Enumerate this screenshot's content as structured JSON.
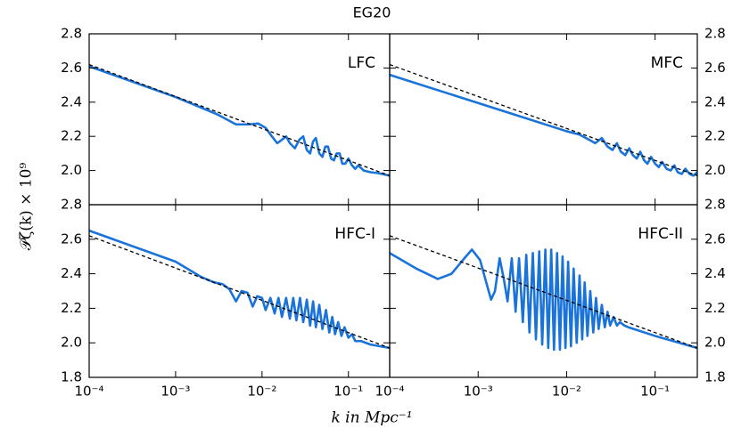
{
  "figure": {
    "title": "EG20",
    "xlabel": "k in Mpc⁻¹",
    "ylabel": "𝒫ζ(k) × 10⁹"
  },
  "chart_data": [
    {
      "type": "line",
      "title": "LFC",
      "xlog": true,
      "xlim": [
        0.0001,
        0.3
      ],
      "ylim": [
        1.8,
        2.8
      ],
      "yaxis": "left",
      "xticks": [
        0.0001,
        0.001,
        0.01,
        0.1
      ],
      "yticks": [
        {
          "value": 2.0,
          "label": "2.0"
        },
        {
          "value": 2.2,
          "label": "2.2"
        },
        {
          "value": 2.4,
          "label": "2.4"
        },
        {
          "value": 2.6,
          "label": "2.6"
        },
        {
          "value": 2.8,
          "label": "2.8"
        }
      ],
      "series": [
        {
          "color": "#1a73d9",
          "style": "solid",
          "x": [
            0.0001,
            0.001,
            0.003,
            0.005,
            0.007,
            0.009,
            0.011,
            0.013,
            0.015,
            0.017,
            0.019,
            0.021,
            0.024,
            0.027,
            0.03,
            0.033,
            0.036,
            0.039,
            0.042,
            0.046,
            0.05,
            0.054,
            0.058,
            0.063,
            0.068,
            0.073,
            0.079,
            0.085,
            0.092,
            0.1,
            0.11,
            0.12,
            0.13,
            0.15,
            0.18,
            0.22,
            0.3
          ],
          "values": [
            2.61,
            2.43,
            2.33,
            2.27,
            2.27,
            2.275,
            2.25,
            2.2,
            2.16,
            2.18,
            2.2,
            2.16,
            2.13,
            2.18,
            2.2,
            2.12,
            2.1,
            2.17,
            2.19,
            2.1,
            2.08,
            2.14,
            2.14,
            2.07,
            2.06,
            2.1,
            2.1,
            2.04,
            2.04,
            2.07,
            2.03,
            2.01,
            2.03,
            2.0,
            1.99,
            1.985,
            1.97
          ]
        },
        {
          "color": "#000000",
          "style": "dashed",
          "x": [
            0.0001,
            0.3
          ],
          "values": [
            2.62,
            1.97
          ]
        }
      ]
    },
    {
      "type": "line",
      "title": "MFC",
      "xlog": true,
      "xlim": [
        0.0001,
        0.3
      ],
      "ylim": [
        1.8,
        2.8
      ],
      "yaxis": "right",
      "xticks": [
        0.0001,
        0.001,
        0.01,
        0.1
      ],
      "yticks": [
        {
          "value": 2.0,
          "label": "2.0"
        },
        {
          "value": 2.2,
          "label": "2.2"
        },
        {
          "value": 2.4,
          "label": "2.4"
        },
        {
          "value": 2.6,
          "label": "2.6"
        },
        {
          "value": 2.8,
          "label": "2.8"
        }
      ],
      "series": [
        {
          "color": "#1a73d9",
          "style": "solid",
          "x": [
            0.0001,
            0.01,
            0.014,
            0.018,
            0.021,
            0.025,
            0.029,
            0.033,
            0.037,
            0.041,
            0.046,
            0.051,
            0.056,
            0.062,
            0.068,
            0.075,
            0.082,
            0.09,
            0.1,
            0.11,
            0.12,
            0.135,
            0.15,
            0.165,
            0.18,
            0.2,
            0.22,
            0.245,
            0.27,
            0.3
          ],
          "values": [
            2.56,
            2.23,
            2.21,
            2.18,
            2.16,
            2.19,
            2.14,
            2.12,
            2.16,
            2.11,
            2.09,
            2.13,
            2.09,
            2.07,
            2.11,
            2.06,
            2.04,
            2.08,
            2.04,
            2.02,
            2.05,
            2.01,
            2.0,
            2.03,
            1.99,
            1.98,
            2.01,
            1.98,
            1.97,
            1.99
          ]
        },
        {
          "color": "#000000",
          "style": "dashed",
          "x": [
            0.0001,
            0.3
          ],
          "values": [
            2.62,
            1.97
          ]
        }
      ]
    },
    {
      "type": "line",
      "title": "HFC-I",
      "xlog": true,
      "xlim": [
        0.0001,
        0.3
      ],
      "ylim": [
        1.8,
        2.8
      ],
      "yaxis": "left",
      "xticks": [
        {
          "value": 0.0001,
          "label": "10⁻⁴"
        },
        {
          "value": 0.001,
          "label": "10⁻³"
        },
        {
          "value": 0.01,
          "label": "10⁻²"
        },
        {
          "value": 0.1,
          "label": "10⁻¹"
        }
      ],
      "yticks": [
        {
          "value": 1.8,
          "label": "1.8"
        },
        {
          "value": 2.0,
          "label": "2.0"
        },
        {
          "value": 2.2,
          "label": "2.2"
        },
        {
          "value": 2.4,
          "label": "2.4"
        },
        {
          "value": 2.6,
          "label": "2.6"
        },
        {
          "value": 2.8,
          "label": "2.8"
        }
      ],
      "series": [
        {
          "color": "#1a73d9",
          "style": "solid",
          "x": [
            0.0001,
            0.001,
            0.002,
            0.0028,
            0.0035,
            0.0042,
            0.005,
            0.0058,
            0.0068,
            0.0078,
            0.0088,
            0.01,
            0.011,
            0.0125,
            0.014,
            0.0155,
            0.017,
            0.019,
            0.021,
            0.023,
            0.025,
            0.0275,
            0.03,
            0.033,
            0.036,
            0.039,
            0.042,
            0.046,
            0.05,
            0.055,
            0.06,
            0.065,
            0.07,
            0.076,
            0.083,
            0.09,
            0.1,
            0.11,
            0.12,
            0.14,
            0.18,
            0.3
          ],
          "values": [
            2.65,
            2.47,
            2.38,
            2.35,
            2.34,
            2.31,
            2.24,
            2.3,
            2.29,
            2.21,
            2.27,
            2.26,
            2.19,
            2.26,
            2.17,
            2.26,
            2.15,
            2.26,
            2.14,
            2.26,
            2.13,
            2.26,
            2.12,
            2.25,
            2.1,
            2.24,
            2.09,
            2.22,
            2.08,
            2.19,
            2.06,
            2.15,
            2.05,
            2.12,
            2.04,
            2.09,
            2.03,
            2.05,
            2.01,
            2.01,
            1.99,
            1.97
          ]
        },
        {
          "color": "#000000",
          "style": "dashed",
          "x": [
            0.0001,
            0.3
          ],
          "values": [
            2.62,
            1.97
          ]
        }
      ]
    },
    {
      "type": "line",
      "title": "HFC-II",
      "xlog": true,
      "xlim": [
        0.0001,
        0.3
      ],
      "ylim": [
        1.8,
        2.8
      ],
      "yaxis": "right",
      "xticks": [
        {
          "value": 0.0001,
          "label": "10⁻⁴"
        },
        {
          "value": 0.001,
          "label": "10⁻³"
        },
        {
          "value": 0.01,
          "label": "10⁻²"
        },
        {
          "value": 0.1,
          "label": "10⁻¹"
        }
      ],
      "yticks": [
        {
          "value": 1.8,
          "label": "1.8"
        },
        {
          "value": 2.0,
          "label": "2.0"
        },
        {
          "value": 2.2,
          "label": "2.2"
        },
        {
          "value": 2.4,
          "label": "2.4"
        },
        {
          "value": 2.6,
          "label": "2.6"
        },
        {
          "value": 2.8,
          "label": "2.8"
        }
      ],
      "series": [
        {
          "color": "#1a73d9",
          "style": "solid",
          "x": [
            0.0001,
            0.0002,
            0.00035,
            0.0005,
            0.0007,
            0.00085,
            0.00105,
            0.00125,
            0.0014,
            0.00155,
            0.00175,
            0.00195,
            0.00215,
            0.0024,
            0.00265,
            0.0029,
            0.0032,
            0.0035,
            0.0038,
            0.00415,
            0.0045,
            0.0049,
            0.0053,
            0.00575,
            0.0062,
            0.0067,
            0.0072,
            0.0078,
            0.0084,
            0.009,
            0.0097,
            0.0104,
            0.0112,
            0.012,
            0.013,
            0.014,
            0.015,
            0.016,
            0.0172,
            0.0185,
            0.02,
            0.0215,
            0.023,
            0.025,
            0.027,
            0.029,
            0.031,
            0.034,
            0.037,
            0.04,
            0.045,
            0.05,
            0.1,
            0.3
          ],
          "values": [
            2.52,
            2.43,
            2.37,
            2.4,
            2.49,
            2.54,
            2.48,
            2.34,
            2.25,
            2.3,
            2.49,
            2.37,
            2.24,
            2.49,
            2.18,
            2.49,
            2.12,
            2.51,
            2.06,
            2.52,
            2.02,
            2.53,
            1.99,
            2.54,
            1.97,
            2.54,
            1.96,
            2.52,
            1.96,
            2.5,
            1.97,
            2.47,
            1.98,
            2.43,
            2.0,
            2.39,
            2.02,
            2.35,
            2.04,
            2.3,
            2.06,
            2.26,
            2.08,
            2.22,
            2.09,
            2.18,
            2.1,
            2.15,
            2.1,
            2.12,
            2.1,
            2.09,
            2.04,
            1.97
          ]
        },
        {
          "color": "#000000",
          "style": "dashed",
          "x": [
            0.0001,
            0.3
          ],
          "values": [
            2.62,
            1.97
          ]
        }
      ]
    }
  ]
}
